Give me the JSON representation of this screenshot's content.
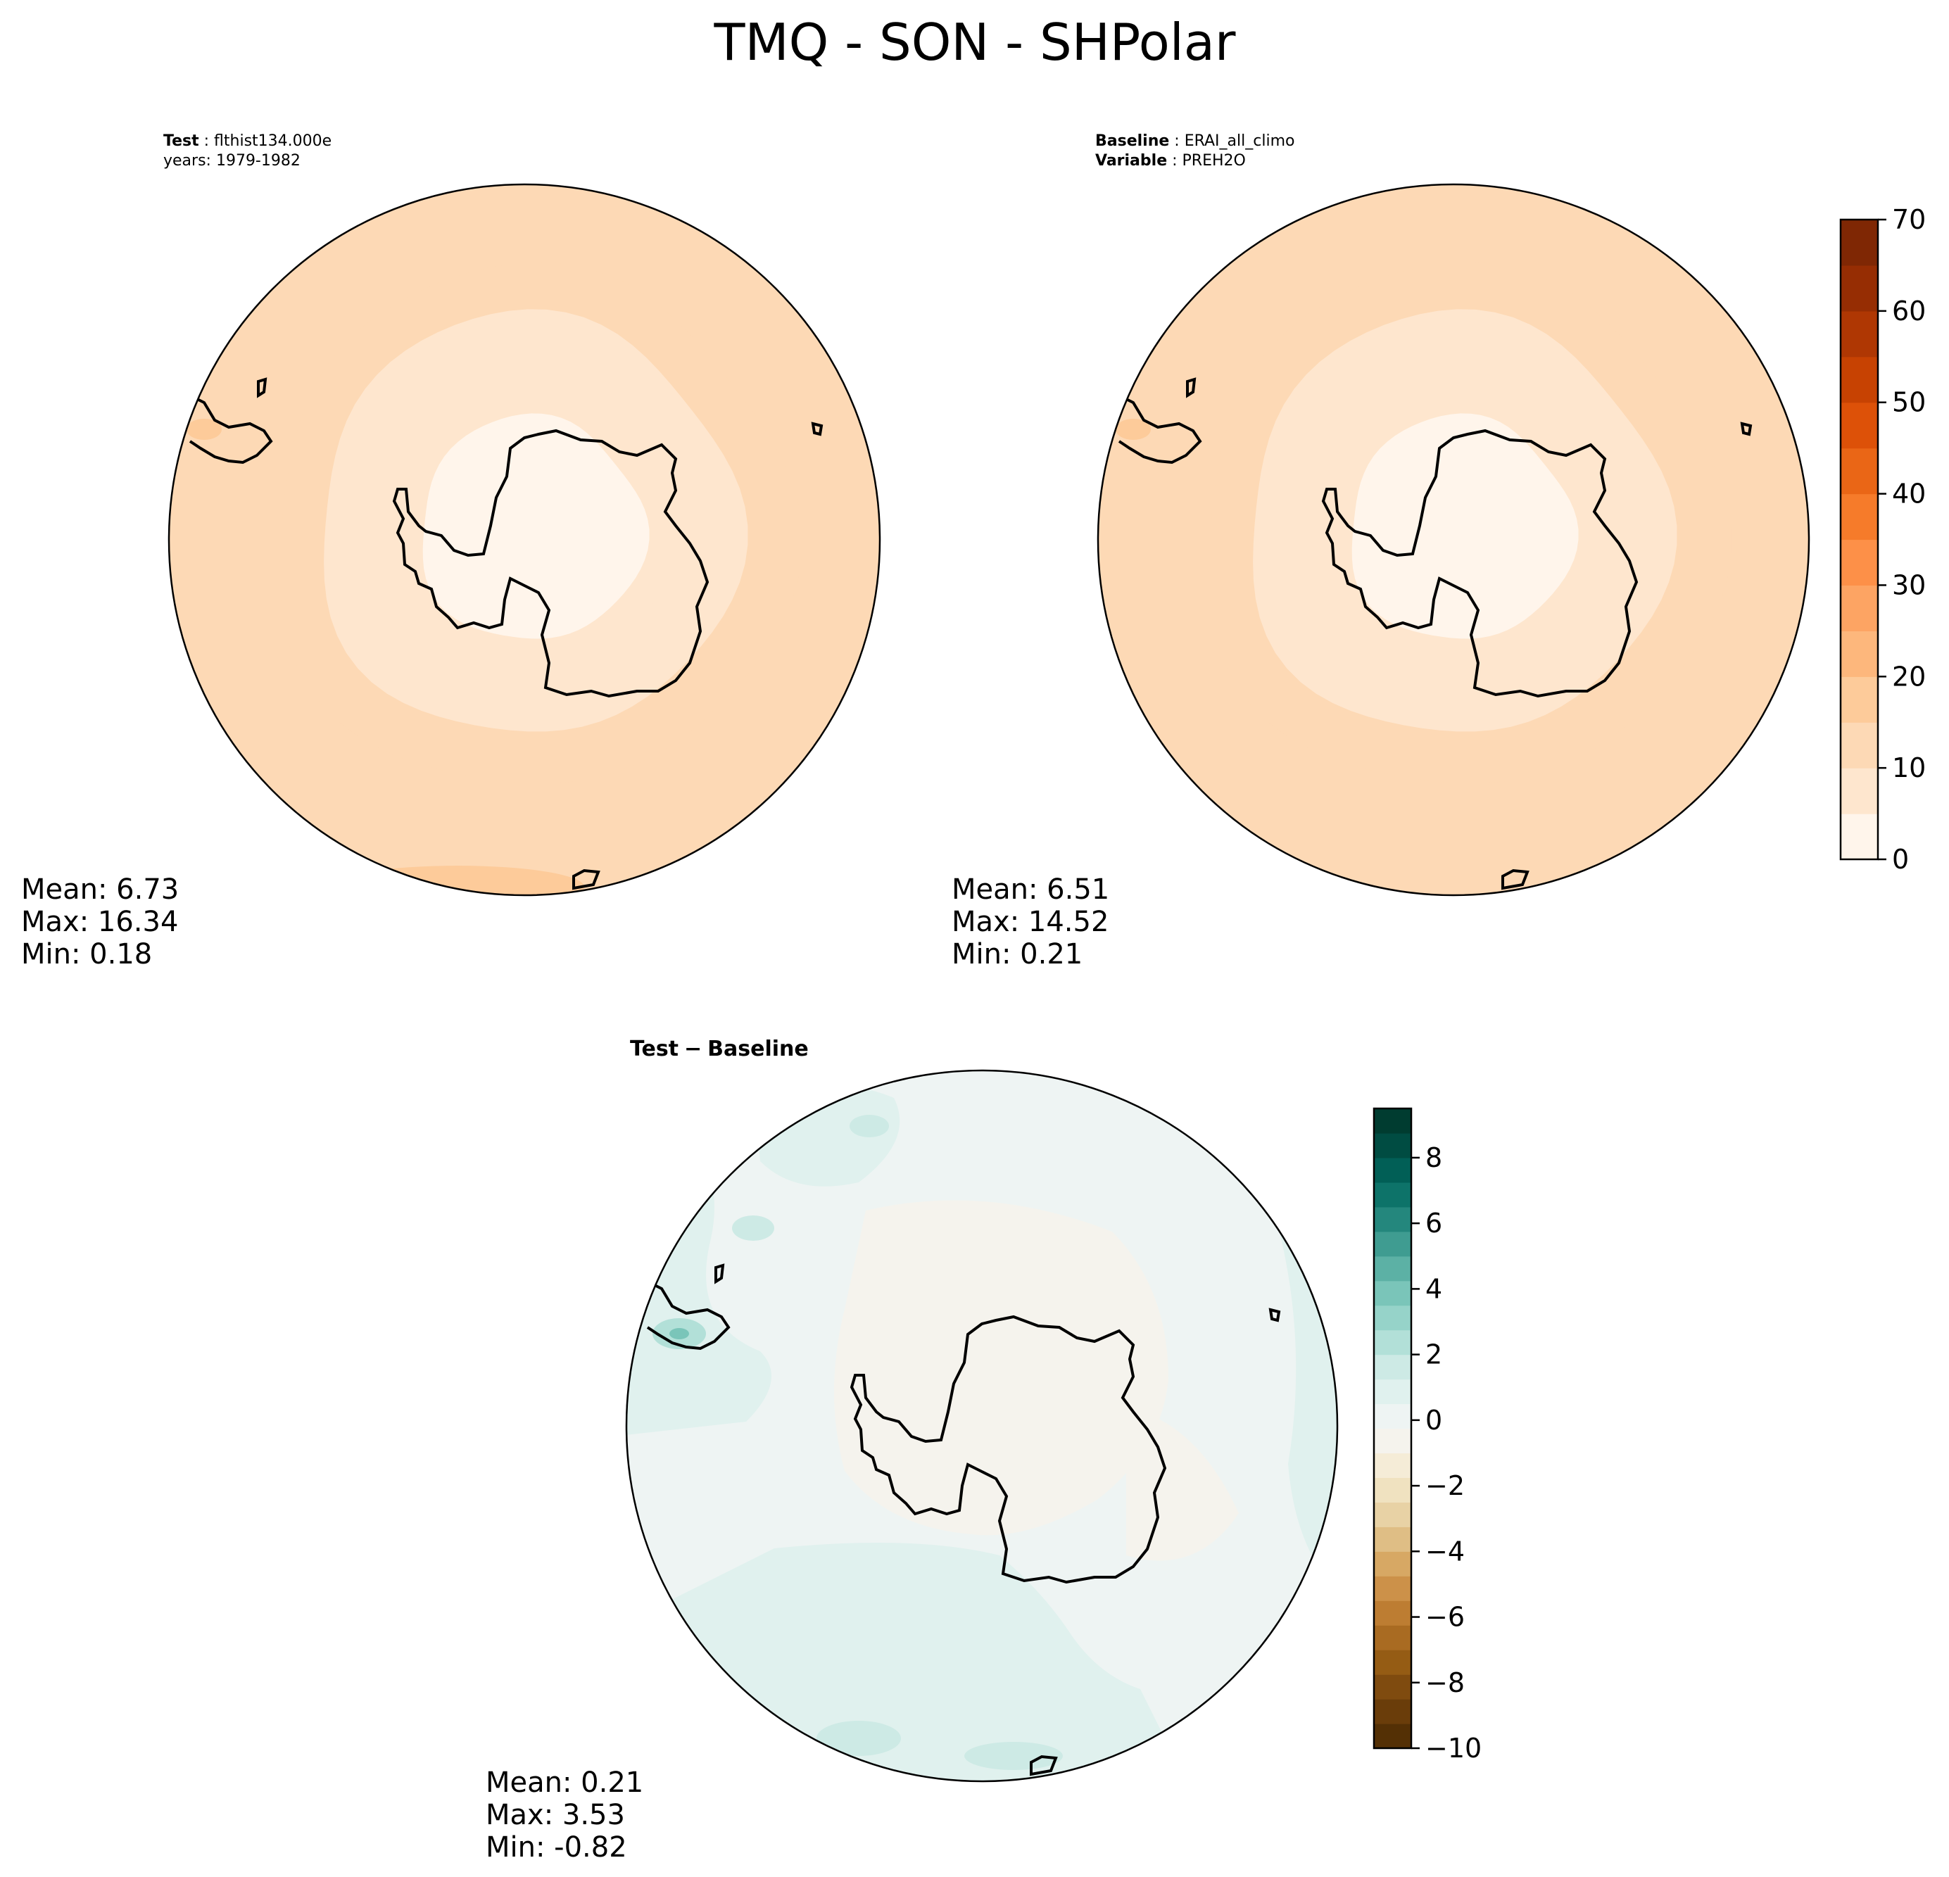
{
  "figure": {
    "title": "TMQ - SON - SHPolar"
  },
  "chart_data": [
    {
      "type": "heatmap",
      "panel": "test",
      "projection": "south polar stereographic",
      "label_key": "Test",
      "label_value": "flthist134.000e",
      "years_label": "years: 1979-1982",
      "rings": [
        {
          "zone": "outer ocean",
          "value": 12.5
        },
        {
          "zone": "mid ocean",
          "value": 10.0
        },
        {
          "zone": "inner ocean",
          "value": 7.5
        },
        {
          "zone": "coast",
          "value": 5.0
        },
        {
          "zone": "interior",
          "value": 2.5
        }
      ],
      "stats": {
        "mean": "Mean:  6.73",
        "max": "Max: 16.34",
        "min": "Min:  0.18"
      }
    },
    {
      "type": "heatmap",
      "panel": "baseline",
      "projection": "south polar stereographic",
      "label_key": "Baseline",
      "label_value": "ERAI_all_climo",
      "variable_key": "Variable",
      "variable_value": "PREH2O",
      "rings": [
        {
          "zone": "outer ocean",
          "value": 12.5
        },
        {
          "zone": "mid ocean",
          "value": 10.0
        },
        {
          "zone": "inner ocean",
          "value": 7.5
        },
        {
          "zone": "coast",
          "value": 5.0
        },
        {
          "zone": "interior",
          "value": 2.5
        }
      ],
      "stats": {
        "mean": "Mean:  6.51",
        "max": "Max: 14.52",
        "min": "Min:  0.21"
      }
    },
    {
      "type": "heatmap",
      "panel": "difference",
      "projection": "south polar stereographic",
      "title_left": "Test",
      "title_op": "−",
      "title_right": "Baseline",
      "stats": {
        "mean": "Mean:  0.21",
        "max": "Max:  3.53",
        "min": "Min: -0.82"
      }
    }
  ],
  "colorbar_main": {
    "range": [
      0,
      70
    ],
    "levels": [
      0,
      5,
      10,
      15,
      20,
      25,
      30,
      35,
      40,
      45,
      50,
      55,
      60,
      65,
      70
    ],
    "ticks": [
      "0",
      "10",
      "20",
      "30",
      "40",
      "50",
      "60",
      "70"
    ],
    "colors": [
      "#fff5eb",
      "#fee6ce",
      "#fdd9b5",
      "#fdcb9a",
      "#fdb77c",
      "#fda463",
      "#fd9048",
      "#f67b2a",
      "#ea6616",
      "#dd5108",
      "#c74202",
      "#af3703",
      "#962d03",
      "#7f2704"
    ]
  },
  "colorbar_diff": {
    "range": [
      -10,
      9.5
    ],
    "ticks": [
      "8",
      "6",
      "4",
      "2",
      "0",
      "−2",
      "−4",
      "−6",
      "−8",
      "−10"
    ],
    "tick_values": [
      8,
      6,
      4,
      2,
      0,
      -2,
      -4,
      -6,
      -8,
      -10
    ],
    "colors": [
      "#543005",
      "#6a3d0a",
      "#7f4b0f",
      "#955c14",
      "#a96b22",
      "#bd7d32",
      "#cc9149",
      "#d7a864",
      "#dfbe85",
      "#e8d2a5",
      "#f0e2c0",
      "#f5ecd7",
      "#f5f3ed",
      "#eef4f3",
      "#e0f1ee",
      "#cdeae5",
      "#b2e0d8",
      "#96d3c9",
      "#7ac5b9",
      "#5cb1a5",
      "#3f9c91",
      "#24877d",
      "#0d7369",
      "#015f56",
      "#004c42",
      "#003c30"
    ]
  }
}
